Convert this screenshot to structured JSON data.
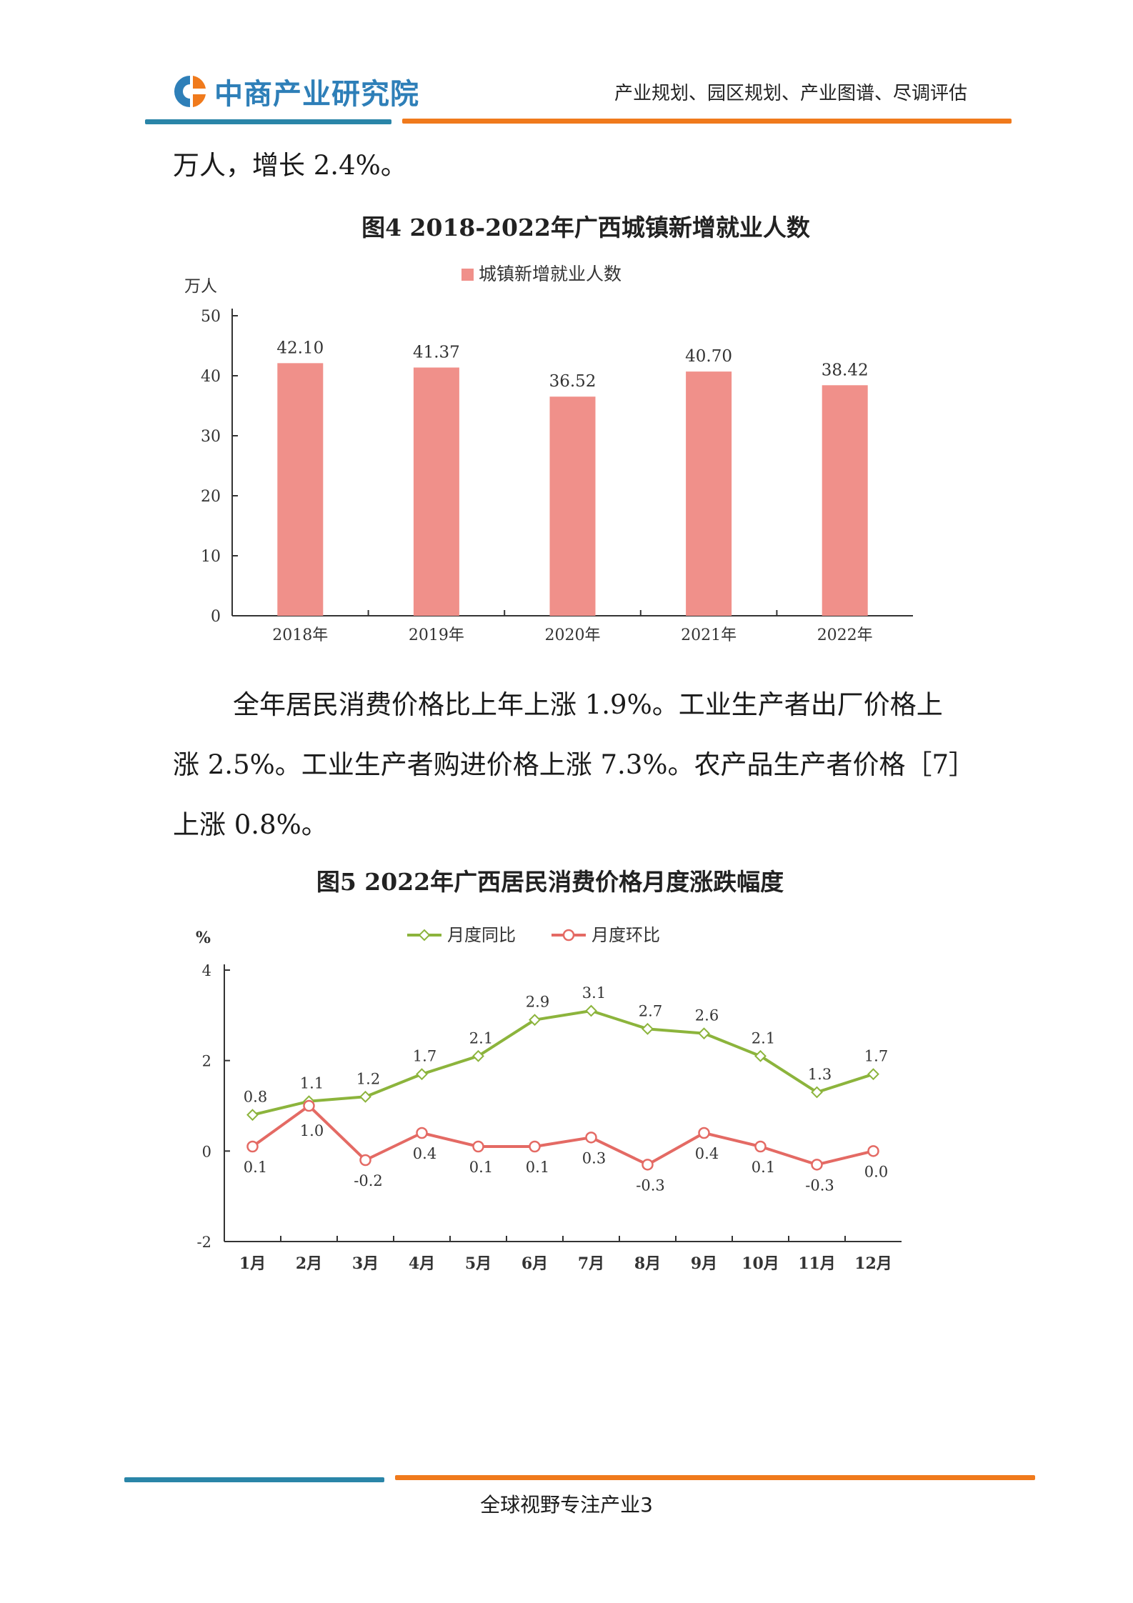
{
  "header": {
    "logo_text": "中商产业研究院",
    "tagline": "产业规划、园区规划、产业图谱、尽调评估",
    "colors": {
      "brand_blue": "#2e7fb8",
      "brand_orange": "#f07a1c"
    }
  },
  "paragraphs": {
    "first": "万人，增长 2.4%。",
    "second": "全年居民消费价格比上年上涨 1.9%。工业生产者出厂价格上涨 2.5%。工业生产者购进价格上涨 7.3%。农产品生产者价格［7］上涨 0.8%。"
  },
  "chart_data": [
    {
      "type": "bar",
      "title": "图4  2018-2022年广西城镇新增就业人数",
      "ylabel": "万人",
      "legend": [
        "城镇新增就业人数"
      ],
      "legend_position": "top-center",
      "categories": [
        "2018年",
        "2019年",
        "2020年",
        "2021年",
        "2022年"
      ],
      "series": [
        {
          "name": "城镇新增就业人数",
          "values": [
            42.1,
            41.37,
            36.52,
            40.7,
            38.42
          ]
        }
      ],
      "data_labels": [
        "42.10",
        "41.37",
        "36.52",
        "40.70",
        "38.42"
      ],
      "yticks": [
        "0",
        "10",
        "20",
        "30",
        "40",
        "50"
      ],
      "ylim": [
        0,
        50
      ],
      "grid": false,
      "bar_color": "#f0908a"
    },
    {
      "type": "line",
      "title": "图5  2022年广西居民消费价格月度涨跌幅度",
      "ylabel": "%",
      "legend_position": "top-center",
      "categories": [
        "1月",
        "2月",
        "3月",
        "4月",
        "5月",
        "6月",
        "7月",
        "8月",
        "9月",
        "10月",
        "11月",
        "12月"
      ],
      "series": [
        {
          "name": "月度同比",
          "color": "#8cb43c",
          "values": [
            0.8,
            1.1,
            1.2,
            1.7,
            2.1,
            2.9,
            3.1,
            2.7,
            2.6,
            2.1,
            1.3,
            1.7
          ],
          "labels": [
            "0.8",
            "1.1",
            "1.2",
            "1.7",
            "2.1",
            "2.9",
            "3.1",
            "2.7",
            "2.6",
            "2.1",
            "1.3",
            "1.7"
          ]
        },
        {
          "name": "月度环比",
          "color": "#e46a64",
          "values": [
            0.1,
            1.0,
            -0.2,
            0.4,
            0.1,
            0.1,
            0.3,
            -0.3,
            0.4,
            0.1,
            -0.3,
            0.0
          ],
          "labels": [
            "0.1",
            "1.0",
            "-0.2",
            "0.4",
            "0.1",
            "0.1",
            "0.3",
            "-0.3",
            "0.4",
            "0.1",
            "-0.3",
            "0.0"
          ]
        }
      ],
      "yticks": [
        "-2",
        "0",
        "2",
        "4"
      ],
      "ylim": [
        -2,
        4
      ],
      "grid": false
    }
  ],
  "footer": {
    "text": "全球视野专注产业3"
  }
}
